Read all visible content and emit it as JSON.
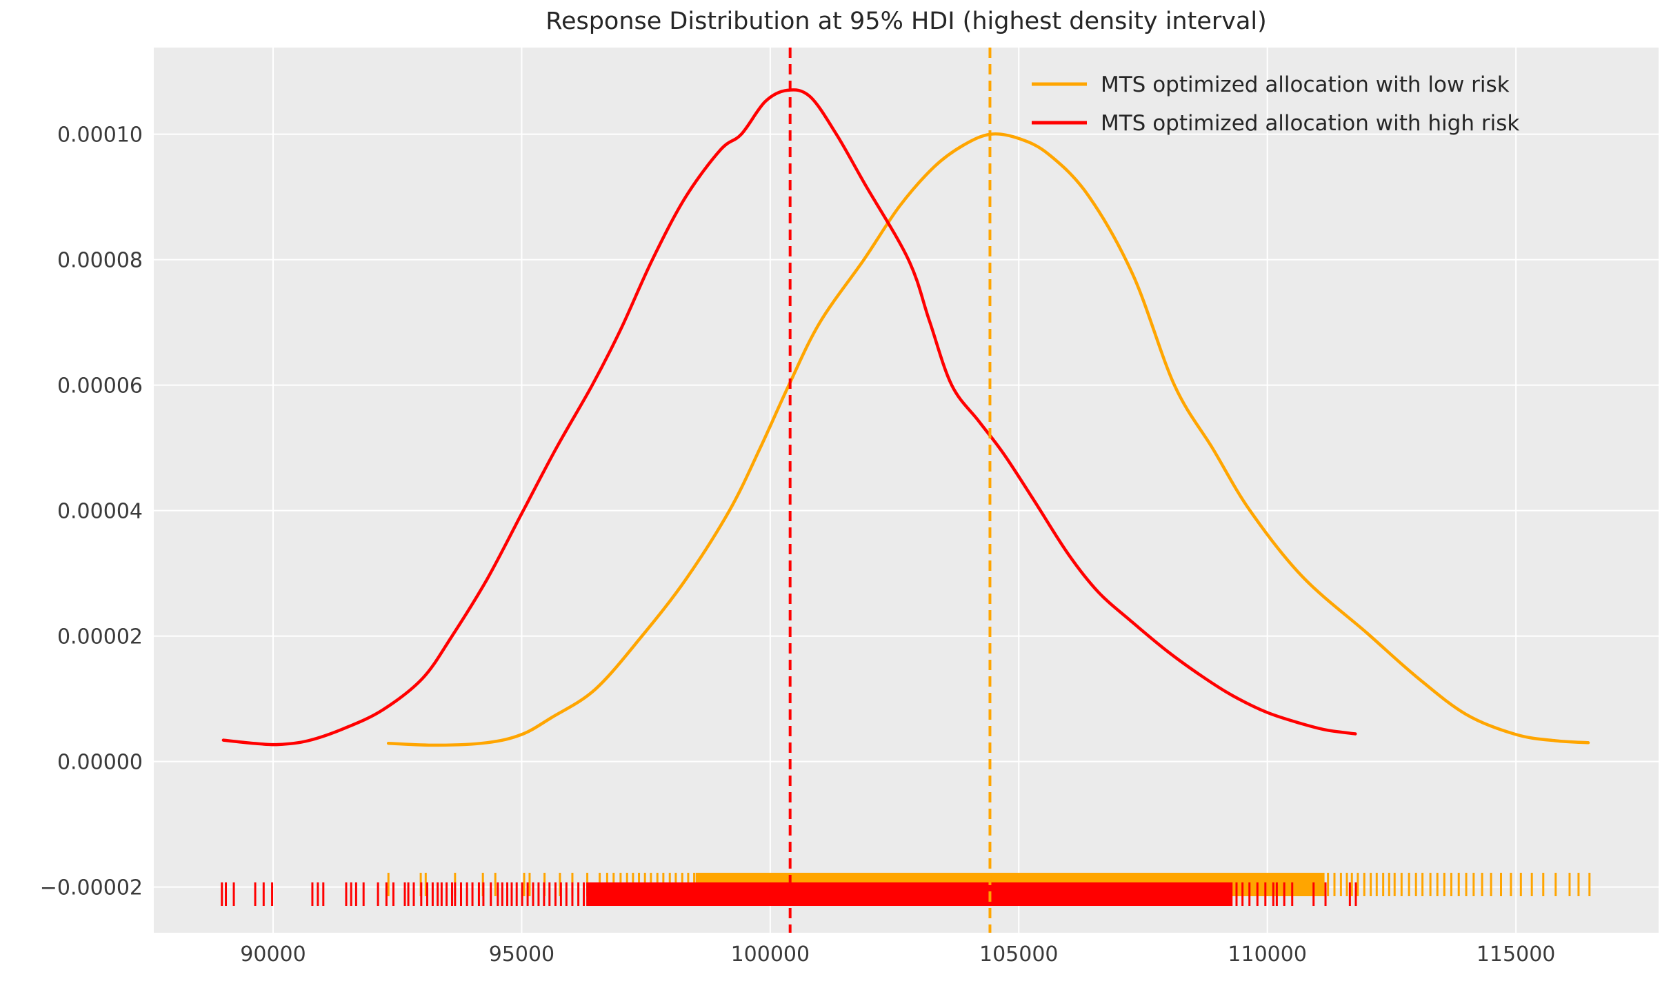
{
  "title": "Response Distribution at 95% HDI (highest density interval)",
  "colors": {
    "figure_background": "#ffffff",
    "axes_background": "#ebebeb",
    "grid": "#ffffff",
    "low_risk_orange": "#ffa500",
    "high_risk_red": "#ff0000",
    "text": "#3a3a3a",
    "title_text": "#262626"
  },
  "legend": {
    "items": [
      {
        "label": "MTS optimized allocation with low risk",
        "color": "#ffa500"
      },
      {
        "label": "MTS optimized allocation with high risk",
        "color": "#ff0000"
      }
    ]
  },
  "chart_data": {
    "type": "line",
    "subtype": "kde-with-rug",
    "title": "Response Distribution at 95% HDI (highest density interval)",
    "xlabel": "",
    "ylabel": "",
    "xlim": [
      87600,
      117870
    ],
    "ylim": [
      -2.73e-05,
      0.0001138
    ],
    "grid": true,
    "legend_position": "upper right",
    "x_ticks": [
      90000,
      95000,
      100000,
      105000,
      110000,
      115000
    ],
    "x_tick_labels": [
      "90000",
      "95000",
      "100000",
      "105000",
      "110000",
      "115000"
    ],
    "y_ticks": [
      -2e-05,
      0.0,
      2e-05,
      4e-05,
      6e-05,
      8e-05,
      0.0001
    ],
    "y_tick_labels": [
      "−0.00002",
      "0.00000",
      "0.00002",
      "0.00004",
      "0.00006",
      "0.00008",
      "0.00010"
    ],
    "series": [
      {
        "name": "MTS optimized allocation with low risk",
        "color": "#ffa500",
        "style": "kde-curve",
        "mean_vline": 104420,
        "peak": {
          "x": 104440,
          "y": 0.0001
        },
        "points": [
          [
            92320,
            2.9e-06
          ],
          [
            93300,
            2.6e-06
          ],
          [
            94300,
            3e-06
          ],
          [
            95000,
            4.3e-06
          ],
          [
            95600,
            7e-06
          ],
          [
            96480,
            1.15e-05
          ],
          [
            97420,
            2e-05
          ],
          [
            98300,
            2.9e-05
          ],
          [
            99180,
            4e-05
          ],
          [
            99800,
            5e-05
          ],
          [
            100375,
            6e-05
          ],
          [
            101000,
            7e-05
          ],
          [
            101885,
            8e-05
          ],
          [
            102600,
            8.85e-05
          ],
          [
            103300,
            9.48e-05
          ],
          [
            103900,
            9.83e-05
          ],
          [
            104440,
            0.0001
          ],
          [
            105000,
            9.93e-05
          ],
          [
            105600,
            9.68e-05
          ],
          [
            106400,
            9.02e-05
          ],
          [
            107300,
            7.75e-05
          ],
          [
            108130,
            6e-05
          ],
          [
            108900,
            4.99e-05
          ],
          [
            109650,
            4e-05
          ],
          [
            110700,
            2.95e-05
          ],
          [
            112000,
            2.05e-05
          ],
          [
            113000,
            1.35e-05
          ],
          [
            114000,
            7.5e-06
          ],
          [
            115000,
            4.3e-06
          ],
          [
            115800,
            3.3e-06
          ],
          [
            116455,
            3e-06
          ]
        ],
        "rug": {
          "dense_band": [
            98500,
            111150
          ],
          "ticks": [
            92320,
            92970,
            93070,
            93660,
            94220,
            94470,
            95050,
            95160,
            95460,
            95770,
            96020,
            96320,
            96570,
            96720,
            96850,
            96990,
            97120,
            97240,
            97360,
            97480,
            97600,
            97730,
            97850,
            97980,
            98100,
            98230,
            98350,
            98470,
            111220,
            111350,
            111480,
            111600,
            111700,
            111820,
            111950,
            112080,
            112200,
            112330,
            112450,
            112560,
            112700,
            112850,
            112990,
            113120,
            113280,
            113420,
            113560,
            113700,
            113850,
            114000,
            114150,
            114320,
            114500,
            114700,
            114900,
            115100,
            115320,
            115550,
            115800,
            116080,
            116260,
            116480
          ]
        }
      },
      {
        "name": "MTS optimized allocation with high risk",
        "color": "#ff0000",
        "style": "kde-curve",
        "mean_vline": 100400,
        "peak": {
          "x": 100350,
          "y": 0.000107
        },
        "points": [
          [
            89000,
            3.4e-06
          ],
          [
            89600,
            2.9e-06
          ],
          [
            90100,
            2.7e-06
          ],
          [
            90700,
            3.3e-06
          ],
          [
            91440,
            5.3e-06
          ],
          [
            92200,
            8.2e-06
          ],
          [
            93000,
            1.32e-05
          ],
          [
            93600,
            2e-05
          ],
          [
            94300,
            2.9e-05
          ],
          [
            95000,
            3.95e-05
          ],
          [
            95700,
            5e-05
          ],
          [
            96420,
            6e-05
          ],
          [
            97000,
            6.9e-05
          ],
          [
            97630,
            8e-05
          ],
          [
            98300,
            9e-05
          ],
          [
            99000,
            9.75e-05
          ],
          [
            99420,
            0.0001
          ],
          [
            99900,
            0.0001052
          ],
          [
            100350,
            0.000107
          ],
          [
            100800,
            0.000106
          ],
          [
            101330,
            0.0001
          ],
          [
            101900,
            9.21e-05
          ],
          [
            102780,
            8e-05
          ],
          [
            103200,
            7.03e-05
          ],
          [
            103650,
            6e-05
          ],
          [
            104200,
            5.42e-05
          ],
          [
            104700,
            4.9e-05
          ],
          [
            105315,
            4.15e-05
          ],
          [
            106000,
            3.3e-05
          ],
          [
            106600,
            2.7e-05
          ],
          [
            107240,
            2.25e-05
          ],
          [
            108000,
            1.75e-05
          ],
          [
            108700,
            1.35e-05
          ],
          [
            109300,
            1.05e-05
          ],
          [
            110000,
            7.8e-06
          ],
          [
            110700,
            6e-06
          ],
          [
            111200,
            5e-06
          ],
          [
            111770,
            4.4e-06
          ]
        ],
        "rug": {
          "dense_band": [
            96300,
            109300
          ],
          "ticks": [
            88970,
            89050,
            89210,
            89640,
            89810,
            89980,
            90790,
            90900,
            91010,
            91470,
            91570,
            91670,
            91820,
            92110,
            92280,
            92420,
            92650,
            92720,
            92830,
            92980,
            93100,
            93210,
            93310,
            93390,
            93490,
            93600,
            93660,
            93780,
            93900,
            94010,
            94140,
            94230,
            94380,
            94520,
            94610,
            94710,
            94800,
            94900,
            95010,
            95120,
            95230,
            95340,
            95450,
            95560,
            95680,
            95790,
            95900,
            96020,
            96140,
            96250,
            109380,
            109500,
            109640,
            109800,
            109960,
            110120,
            110190,
            110340,
            110500,
            110930,
            111170,
            111660,
            111780
          ]
        }
      }
    ]
  }
}
